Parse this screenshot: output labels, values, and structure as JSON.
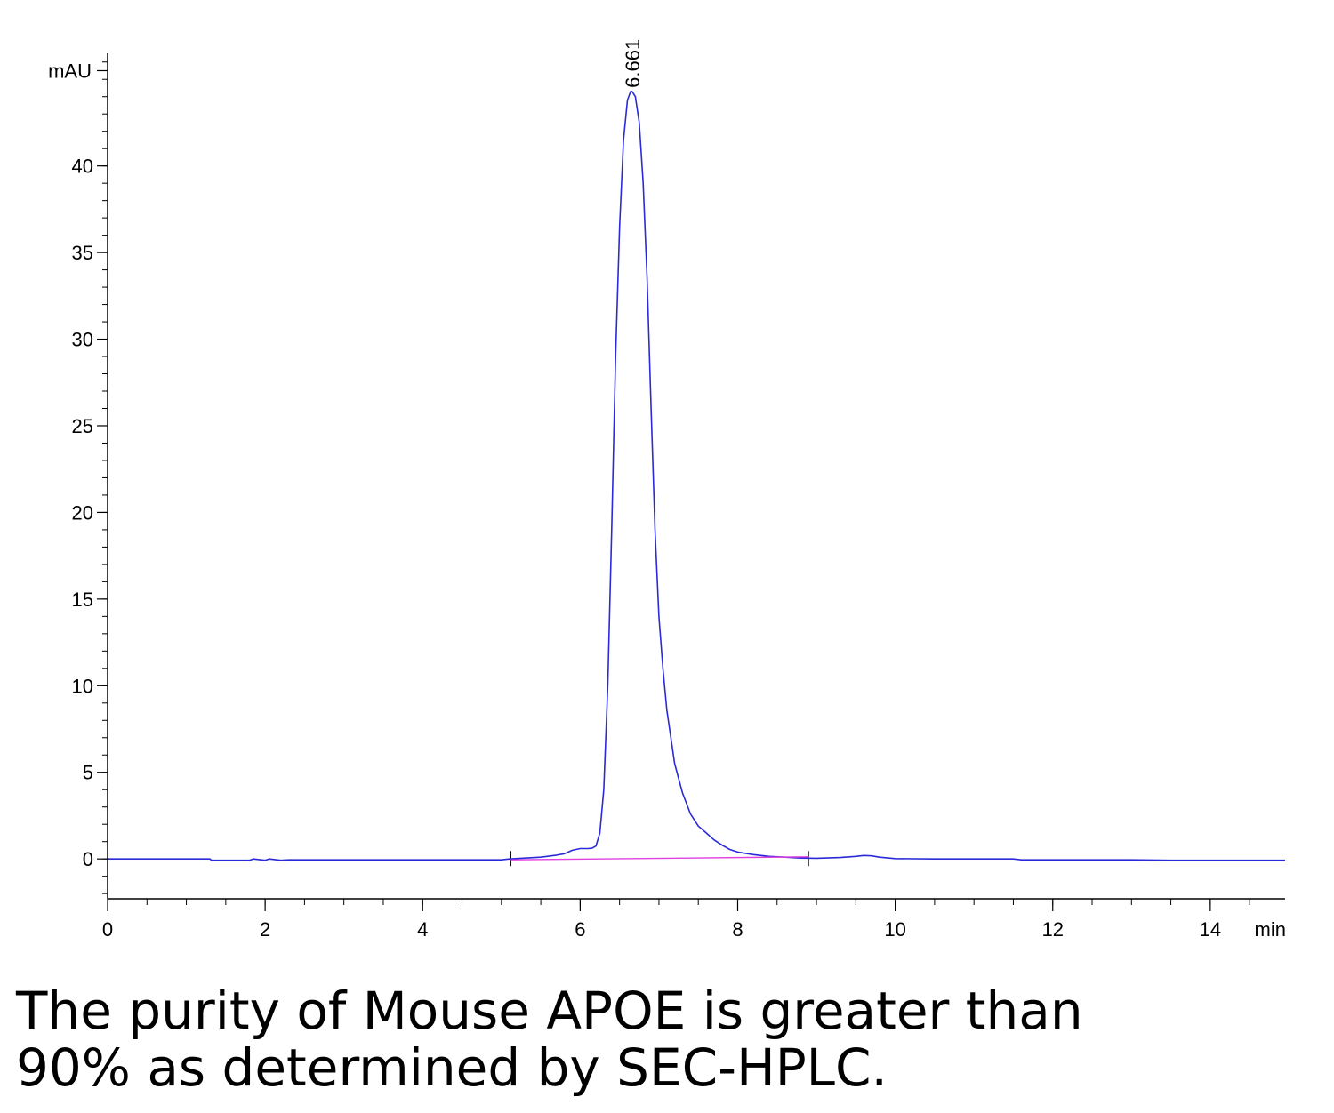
{
  "chart_data": {
    "type": "line",
    "title": "",
    "xlabel": "min",
    "ylabel": "mAU",
    "xlim": [
      0,
      14.95
    ],
    "ylim": [
      -2.3,
      46.5
    ],
    "x_ticks": [
      0,
      2,
      4,
      6,
      8,
      10,
      12,
      14
    ],
    "x_tick_labels": [
      "0",
      "2",
      "4",
      "6",
      "8",
      "10",
      "12",
      "14"
    ],
    "y_ticks": [
      0,
      5,
      10,
      15,
      20,
      25,
      30,
      35,
      40
    ],
    "y_tick_labels": [
      "0",
      "5",
      "10",
      "15",
      "20",
      "25",
      "30",
      "35",
      "40"
    ],
    "grid": false,
    "series": [
      {
        "color": "#2a2ad8",
        "x": [
          0,
          1.3,
          1.32,
          1.8,
          1.85,
          2.0,
          2.05,
          2.2,
          2.3,
          3.0,
          4.0,
          5.0,
          5.1,
          5.3,
          5.5,
          5.7,
          5.8,
          5.9,
          6.0,
          6.1,
          6.15,
          6.2,
          6.25,
          6.3,
          6.35,
          6.4,
          6.45,
          6.5,
          6.55,
          6.6,
          6.64,
          6.66,
          6.7,
          6.75,
          6.8,
          6.85,
          6.9,
          6.95,
          7.0,
          7.05,
          7.1,
          7.2,
          7.3,
          7.4,
          7.5,
          7.6,
          7.7,
          7.8,
          7.9,
          8.0,
          8.2,
          8.4,
          8.6,
          8.8,
          9.0,
          9.3,
          9.5,
          9.6,
          9.7,
          9.8,
          10.0,
          10.5,
          11.0,
          11.5,
          11.6,
          12.0,
          13.0,
          13.5,
          14.0,
          14.5,
          14.95
        ],
        "y": [
          0.0,
          0.0,
          -0.08,
          -0.08,
          0.0,
          -0.08,
          0.0,
          -0.08,
          -0.05,
          -0.05,
          -0.05,
          -0.05,
          0.0,
          0.05,
          0.1,
          0.22,
          0.3,
          0.5,
          0.6,
          0.6,
          0.62,
          0.75,
          1.5,
          4.0,
          10.0,
          19.0,
          29.0,
          36.5,
          41.5,
          43.8,
          44.3,
          44.3,
          44.0,
          42.5,
          39.0,
          33.5,
          26.0,
          19.0,
          14.0,
          11.0,
          8.6,
          5.5,
          3.8,
          2.6,
          1.9,
          1.5,
          1.1,
          0.8,
          0.55,
          0.4,
          0.25,
          0.15,
          0.1,
          0.05,
          0.04,
          0.08,
          0.15,
          0.2,
          0.18,
          0.1,
          0.02,
          0.0,
          0.0,
          0.0,
          -0.05,
          -0.05,
          -0.05,
          -0.08,
          -0.08,
          -0.08,
          -0.08
        ]
      },
      {
        "color": "#e040e0",
        "x": [
          5.12,
          8.9
        ],
        "y": [
          -0.05,
          0.12
        ]
      }
    ],
    "annotations": [
      {
        "text": "6.661",
        "x": 6.661,
        "y": 44.3,
        "rotation": -90
      }
    ],
    "baseline_marks": [
      5.12,
      8.9
    ]
  },
  "caption": {
    "line1": "The purity of Mouse APOE is greater than",
    "line2": "90% as determined by SEC-HPLC."
  }
}
